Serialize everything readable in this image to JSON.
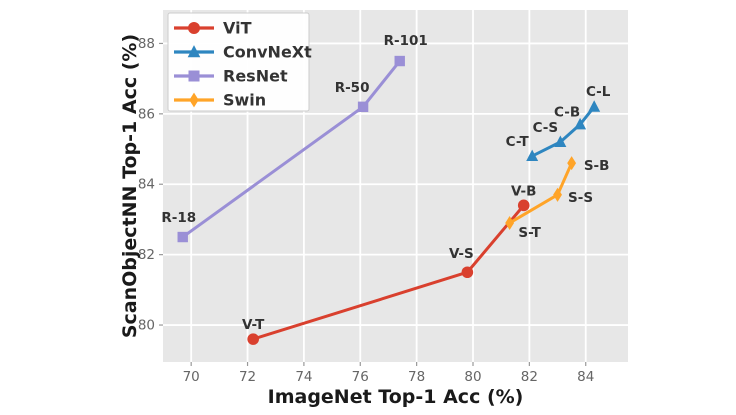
{
  "figure": {
    "background": "#ffffff",
    "plot_background": "#e7e7e7",
    "gridline_color": "#ffffff",
    "tick_color": "#999999",
    "tick_label_color": "#666666",
    "axis_label_color": "#1a1a1a",
    "point_label_color": "#333333",
    "legend_border_color": "#cccccc",
    "legend_background": "#ffffff",
    "legend_text_color": "#333333"
  },
  "chart_data": {
    "type": "line",
    "title": "",
    "xlabel": "ImageNet Top-1 Acc (%)",
    "ylabel": "ScanObjectNN Top-1 Acc (%)",
    "xlim": [
      69.0,
      85.5
    ],
    "ylim": [
      78.95,
      88.95
    ],
    "x_ticks": [
      70,
      72,
      74,
      76,
      78,
      80,
      82,
      84
    ],
    "y_ticks": [
      80,
      82,
      84,
      86,
      88
    ],
    "grid": true,
    "legend_position": "upper-left",
    "series": [
      {
        "name": "ViT",
        "color": "#d9402e",
        "marker": "circle",
        "points": [
          {
            "label": "V-T",
            "x": 72.2,
            "y": 79.6,
            "ldx": 0,
            "ldy": -10
          },
          {
            "label": "V-S",
            "x": 79.8,
            "y": 81.5,
            "ldx": -6,
            "ldy": -14
          },
          {
            "label": "V-B",
            "x": 81.8,
            "y": 83.4,
            "ldx": 0,
            "ldy": -10
          }
        ]
      },
      {
        "name": "ConvNeXt",
        "color": "#2e86c0",
        "marker": "triangle",
        "points": [
          {
            "label": "C-T",
            "x": 82.1,
            "y": 84.8,
            "ldx": -15,
            "ldy": -10
          },
          {
            "label": "C-S",
            "x": 83.1,
            "y": 85.2,
            "ldx": -15,
            "ldy": -10
          },
          {
            "label": "C-B",
            "x": 83.8,
            "y": 85.7,
            "ldx": -13,
            "ldy": -8
          },
          {
            "label": "C-L",
            "x": 84.3,
            "y": 86.2,
            "ldx": 4,
            "ldy": -11
          }
        ]
      },
      {
        "name": "ResNet",
        "color": "#9a8fd6",
        "marker": "square",
        "points": [
          {
            "label": "R-18",
            "x": 69.7,
            "y": 82.5,
            "ldx": -4,
            "ldy": -15
          },
          {
            "label": "R-50",
            "x": 76.1,
            "y": 86.2,
            "ldx": -11,
            "ldy": -15
          },
          {
            "label": "R-101",
            "x": 77.4,
            "y": 87.5,
            "ldx": 6,
            "ldy": -16
          }
        ]
      },
      {
        "name": "Swin",
        "color": "#ffa428",
        "marker": "diamond",
        "points": [
          {
            "label": "S-T",
            "x": 81.3,
            "y": 82.9,
            "ldx": 20,
            "ldy": 14
          },
          {
            "label": "S-S",
            "x": 83.0,
            "y": 83.7,
            "ldx": 23,
            "ldy": 7
          },
          {
            "label": "S-B",
            "x": 83.5,
            "y": 84.6,
            "ldx": 25,
            "ldy": 7
          }
        ]
      }
    ]
  }
}
